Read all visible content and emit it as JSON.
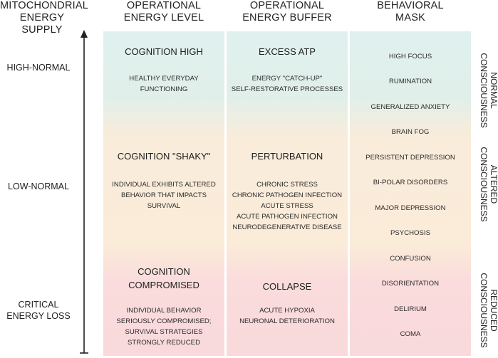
{
  "headers": {
    "supply": "MITOCHONDRIAL\nENERGY SUPPLY",
    "level": "OPERATIONAL\nENERGY LEVEL",
    "buffer": "OPERATIONAL\nENERGY BUFFER",
    "mask": "BEHAVIORAL\nMASK"
  },
  "supply_levels": {
    "high": "HIGH-NORMAL",
    "low": "LOW-NORMAL",
    "critical": "CRITICAL\nENERGY LOSS"
  },
  "energy_level": {
    "high": {
      "title": "COGNITION HIGH",
      "text": "HEALTHY EVERYDAY\nFUNCTIONING"
    },
    "shaky": {
      "title": "COGNITION \"SHAKY\"",
      "text": "INDIVIDUAL EXHIBITS ALTERED\nBEHAVIOR THAT IMPACTS\nSURVIVAL"
    },
    "compromised": {
      "title": "COGNITION\nCOMPROMISED",
      "text": "INDIVIDUAL BEHAVIOR\nSERIOUSLY COMPROMISED;\nSURVIVAL STRATEGIES\nSTRONGLY REDUCED"
    }
  },
  "energy_buffer": {
    "excess": {
      "title": "EXCESS ATP",
      "text": "ENERGY \"CATCH-UP\"\nSELF-RESTORATIVE PROCESSES"
    },
    "perturbation": {
      "title": "PERTURBATION",
      "text": "CHRONIC STRESS\nCHRONIC PATHOGEN INFECTION\nACUTE STRESS\nACUTE PATHOGEN INFECTION\nNEURODEGENERATIVE DISEASE"
    },
    "collapse": {
      "title": "COLLAPSE",
      "text": "ACUTE HYPOXIA\nNEURONAL DETERIORATION"
    }
  },
  "behavioral_mask": [
    "HIGH FOCUS",
    "RUMINATION",
    "GENERALIZED ANXIETY",
    "BRAIN FOG",
    "PERSISTENT DEPRESSION",
    "BI-POLAR DISORDERS",
    "MAJOR DEPRESSION",
    "PSYCHOSIS",
    "CONFUSION",
    "DISORIENTATION",
    "DELIRIUM",
    "COMA"
  ],
  "consciousness": {
    "normal": "NORMAL\nCONSCIOUSNESS",
    "altered": "ALTERED\nCONSCIOUSNESS",
    "reduced": "REDUCED\nCONSCIOUSNESS"
  },
  "colors": {
    "top": "#dff0ee",
    "middle": "#fbebd9",
    "bottom": "#f9d9db",
    "axis": "#222222"
  }
}
